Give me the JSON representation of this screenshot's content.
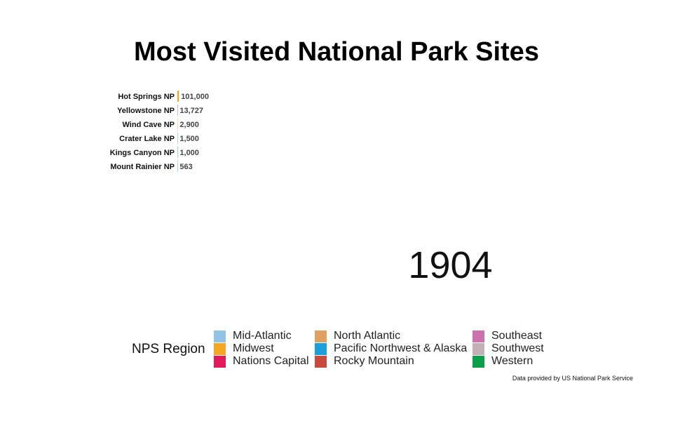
{
  "chart_data": {
    "type": "bar",
    "title": "Most Visited National Park Sites",
    "frame_label": "1904",
    "categories": [
      "Hot Springs NP",
      "Yellowstone NP",
      "Wind Cave NP",
      "Crater Lake NP",
      "Kings Canyon NP",
      "Mount Rainier NP"
    ],
    "values": [
      101000,
      13727,
      2900,
      1500,
      1000,
      563
    ],
    "value_labels": [
      "101,000",
      "13,727",
      "2,900",
      "1,500",
      "1,000",
      "563"
    ],
    "regions": [
      "Midwest",
      "Rocky Mountain",
      "Midwest",
      "Pacific Northwest & Alaska",
      "Western",
      "Pacific Northwest & Alaska"
    ],
    "legend": {
      "title": "NPS Region",
      "entries": [
        {
          "name": "Mid-Atlantic",
          "color": "#91c4e6"
        },
        {
          "name": "Midwest",
          "color": "#f5a623"
        },
        {
          "name": "Nations Capital",
          "color": "#e31a5a"
        },
        {
          "name": "North Atlantic",
          "color": "#e0a060"
        },
        {
          "name": "Pacific Northwest & Alaska",
          "color": "#1a9fdb"
        },
        {
          "name": "Rocky Mountain",
          "color": "#c94a3a"
        },
        {
          "name": "Southeast",
          "color": "#cc70b0"
        },
        {
          "name": "Southwest",
          "color": "#c2b0b6"
        },
        {
          "name": "Western",
          "color": "#0aa04a"
        }
      ]
    },
    "caption": "Data provided by US National Park Service",
    "grid": false,
    "legend_position": "bottom"
  }
}
